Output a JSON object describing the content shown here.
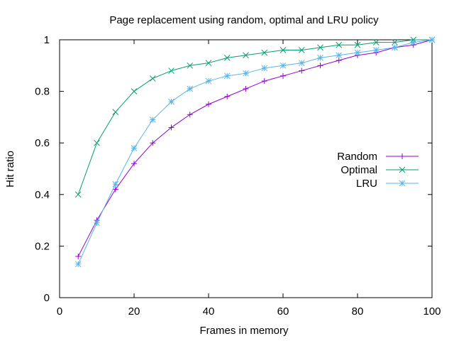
{
  "chart_data": {
    "type": "line",
    "title": "Page replacement using random, optimal and LRU policy",
    "xlabel": "Frames in memory",
    "ylabel": "Hit ratio",
    "xlim": [
      0,
      100
    ],
    "ylim": [
      0,
      1
    ],
    "xticks": [
      0,
      20,
      40,
      60,
      80,
      100
    ],
    "yticks": [
      0,
      0.2,
      0.4,
      0.6,
      0.8,
      1
    ],
    "xtick_labels": [
      "0",
      "20",
      "40",
      "60",
      "80",
      "100"
    ],
    "ytick_labels": [
      "0",
      "0.2",
      "0.4",
      "0.6",
      "0.8",
      "1"
    ],
    "grid": false,
    "legend_position": "right",
    "x": [
      5,
      10,
      15,
      20,
      25,
      30,
      35,
      40,
      45,
      50,
      55,
      60,
      65,
      70,
      75,
      80,
      85,
      90,
      95,
      100
    ],
    "series": [
      {
        "name": "Random",
        "color": "#9400d3",
        "marker": "plus",
        "values": [
          0.16,
          0.3,
          0.42,
          0.52,
          0.6,
          0.66,
          0.71,
          0.75,
          0.78,
          0.81,
          0.84,
          0.86,
          0.88,
          0.9,
          0.92,
          0.94,
          0.95,
          0.97,
          0.98,
          1.0
        ]
      },
      {
        "name": "Optimal",
        "color": "#009e73",
        "marker": "cross",
        "values": [
          0.4,
          0.6,
          0.72,
          0.8,
          0.85,
          0.88,
          0.9,
          0.91,
          0.93,
          0.94,
          0.95,
          0.96,
          0.96,
          0.97,
          0.98,
          0.98,
          0.99,
          0.99,
          1.0,
          1.0
        ]
      },
      {
        "name": "LRU",
        "color": "#56b4e9",
        "marker": "star",
        "values": [
          0.13,
          0.29,
          0.44,
          0.58,
          0.69,
          0.76,
          0.81,
          0.84,
          0.86,
          0.87,
          0.89,
          0.9,
          0.91,
          0.93,
          0.94,
          0.95,
          0.96,
          0.97,
          0.99,
          1.0
        ]
      }
    ]
  }
}
